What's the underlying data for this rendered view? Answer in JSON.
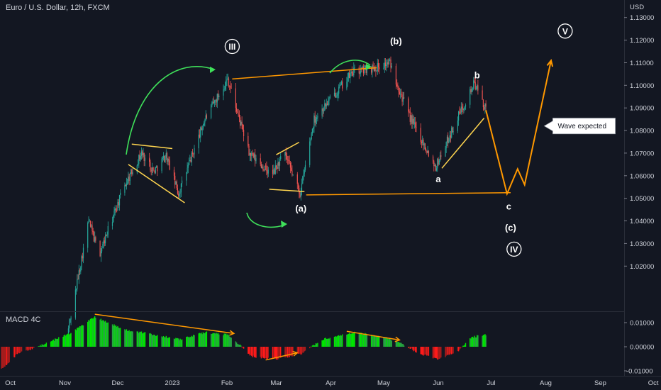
{
  "header": {
    "title": "Euro / U.S. Dollar, 12h, FXCM",
    "currency": "USD"
  },
  "indicator": {
    "name": "MACD 4C",
    "ticks": [
      "0.01000",
      "0.00000",
      "-0.01000"
    ]
  },
  "colors": {
    "background": "#131722",
    "up_candle": "#26a69a",
    "down_candle": "#ef5350",
    "macd_green_bright": "#00e600",
    "macd_green_dark": "#26a641",
    "macd_red_bright": "#ff1a1a",
    "macd_red_dark": "#a61c1c",
    "orange": "#ff9800",
    "yellow": "#ffd54f",
    "green_arc": "#3fe05a"
  },
  "chart_data": {
    "type": "candlestick",
    "symbol": "EURUSD",
    "timeframe": "12h",
    "ylim": [
      1.0,
      1.1365
    ],
    "yticks": [
      "1.13000",
      "1.12000",
      "1.11000",
      "1.10000",
      "1.09000",
      "1.08000",
      "1.07000",
      "1.06000",
      "1.05000",
      "1.04000",
      "1.03000",
      "1.02000"
    ],
    "xticks": [
      "Oct",
      "Nov",
      "Dec",
      "2023",
      "Feb",
      "Mar",
      "Apr",
      "May",
      "Jun",
      "Jul",
      "Aug",
      "Sep",
      "Oct"
    ],
    "price_path": [
      {
        "date": "2022-11-03",
        "price": 0.99
      },
      {
        "date": "2022-11-15",
        "price": 1.04
      },
      {
        "date": "2022-11-21",
        "price": 1.025
      },
      {
        "date": "2022-12-05",
        "price": 1.055
      },
      {
        "date": "2022-12-15",
        "price": 1.07
      },
      {
        "date": "2022-12-22",
        "price": 1.062
      },
      {
        "date": "2022-12-29",
        "price": 1.069
      },
      {
        "date": "2023-01-05",
        "price": 1.052
      },
      {
        "date": "2023-01-20",
        "price": 1.085
      },
      {
        "date": "2023-02-02",
        "price": 1.103
      },
      {
        "date": "2023-02-14",
        "price": 1.07
      },
      {
        "date": "2023-02-27",
        "price": 1.06
      },
      {
        "date": "2023-03-06",
        "price": 1.07
      },
      {
        "date": "2023-03-15",
        "price": 1.052
      },
      {
        "date": "2023-03-23",
        "price": 1.085
      },
      {
        "date": "2023-04-14",
        "price": 1.106
      },
      {
        "date": "2023-04-27",
        "price": 1.108
      },
      {
        "date": "2023-05-05",
        "price": 1.11
      },
      {
        "date": "2023-05-15",
        "price": 1.088
      },
      {
        "date": "2023-05-31",
        "price": 1.064
      },
      {
        "date": "2023-06-15",
        "price": 1.09
      },
      {
        "date": "2023-06-22",
        "price": 1.101
      },
      {
        "date": "2023-06-28",
        "price": 1.09
      }
    ],
    "macd_hist": [
      {
        "date": "2022-09-25",
        "value": -0.01
      },
      {
        "date": "2022-10-05",
        "value": -0.003
      },
      {
        "date": "2022-10-20",
        "value": 0.001
      },
      {
        "date": "2022-11-05",
        "value": 0.006
      },
      {
        "date": "2022-11-18",
        "value": 0.0125
      },
      {
        "date": "2022-12-05",
        "value": 0.007
      },
      {
        "date": "2022-12-22",
        "value": 0.005
      },
      {
        "date": "2023-01-05",
        "value": 0.003
      },
      {
        "date": "2023-01-20",
        "value": 0.006
      },
      {
        "date": "2023-02-02",
        "value": 0.005
      },
      {
        "date": "2023-02-15",
        "value": -0.004
      },
      {
        "date": "2023-03-01",
        "value": -0.005
      },
      {
        "date": "2023-03-15",
        "value": -0.003
      },
      {
        "date": "2023-03-27",
        "value": 0.003
      },
      {
        "date": "2023-04-14",
        "value": 0.006
      },
      {
        "date": "2023-05-01",
        "value": 0.004
      },
      {
        "date": "2023-05-12",
        "value": 0.001
      },
      {
        "date": "2023-05-22",
        "value": -0.003
      },
      {
        "date": "2023-06-01",
        "value": -0.005
      },
      {
        "date": "2023-06-12",
        "value": -0.002
      },
      {
        "date": "2023-06-20",
        "value": 0.004
      },
      {
        "date": "2023-06-28",
        "value": 0.005
      }
    ],
    "projection": [
      {
        "date": "2023-06-28",
        "price": 1.089
      },
      {
        "date": "2023-07-10",
        "price": 1.052
      },
      {
        "date": "2023-07-16",
        "price": 1.063
      },
      {
        "date": "2023-07-20",
        "price": 1.056
      },
      {
        "date": "2023-08-04",
        "price": 1.111
      }
    ],
    "wave_labels": [
      {
        "text": "III",
        "date": "2023-02-04",
        "price": 1.1172,
        "circled": true
      },
      {
        "text": "(b)",
        "date": "2023-05-08",
        "price": 1.1195,
        "circled": false
      },
      {
        "text": "b",
        "date": "2023-06-23",
        "price": 1.1045,
        "circled": false
      },
      {
        "text": "a",
        "date": "2023-06-01",
        "price": 1.0585,
        "circled": false
      },
      {
        "text": "(a)",
        "date": "2023-03-15",
        "price": 1.0455,
        "circled": false
      },
      {
        "text": "c",
        "date": "2023-07-11",
        "price": 1.0465,
        "circled": false
      },
      {
        "text": "(c)",
        "date": "2023-07-12",
        "price": 1.037,
        "circled": false
      },
      {
        "text": "IV",
        "date": "2023-07-14",
        "price": 1.0275,
        "circled": true
      },
      {
        "text": "V",
        "date": "2023-08-12",
        "price": 1.124,
        "circled": true
      }
    ],
    "trendlines_price": [
      {
        "color": "orange",
        "from": {
          "date": "2023-02-04",
          "price": 1.1028
        },
        "to": {
          "date": "2023-04-27",
          "price": 1.1078
        }
      },
      {
        "color": "orange",
        "from": {
          "date": "2023-03-18",
          "price": 1.0515
        },
        "to": {
          "date": "2023-07-12",
          "price": 1.0525
        }
      },
      {
        "color": "yellow",
        "from": {
          "date": "2022-12-09",
          "price": 1.074
        },
        "to": {
          "date": "2023-01-01",
          "price": 1.072
        }
      },
      {
        "color": "yellow",
        "from": {
          "date": "2022-12-07",
          "price": 1.065
        },
        "to": {
          "date": "2023-01-08",
          "price": 1.048
        }
      },
      {
        "color": "yellow",
        "from": {
          "date": "2023-02-25",
          "price": 1.054
        },
        "to": {
          "date": "2023-03-17",
          "price": 1.053
        }
      },
      {
        "color": "yellow",
        "from": {
          "date": "2023-03-01",
          "price": 1.0693
        },
        "to": {
          "date": "2023-03-14",
          "price": 1.0748
        }
      },
      {
        "color": "yellow",
        "from": {
          "date": "2023-06-03",
          "price": 1.0633
        },
        "to": {
          "date": "2023-06-27",
          "price": 1.0855
        }
      }
    ],
    "trendlines_macd": [
      {
        "from": {
          "date": "2022-11-18",
          "value": 0.0135
        },
        "to": {
          "date": "2023-02-05",
          "value": 0.0055
        }
      },
      {
        "from": {
          "date": "2023-02-23",
          "value": -0.0055
        },
        "to": {
          "date": "2023-03-13",
          "value": -0.0025
        }
      },
      {
        "from": {
          "date": "2023-04-10",
          "value": 0.0064
        },
        "to": {
          "date": "2023-05-10",
          "value": 0.0028
        }
      }
    ],
    "callout": {
      "text": "Wave expected",
      "date": "2023-08-05",
      "price": 1.082
    }
  }
}
